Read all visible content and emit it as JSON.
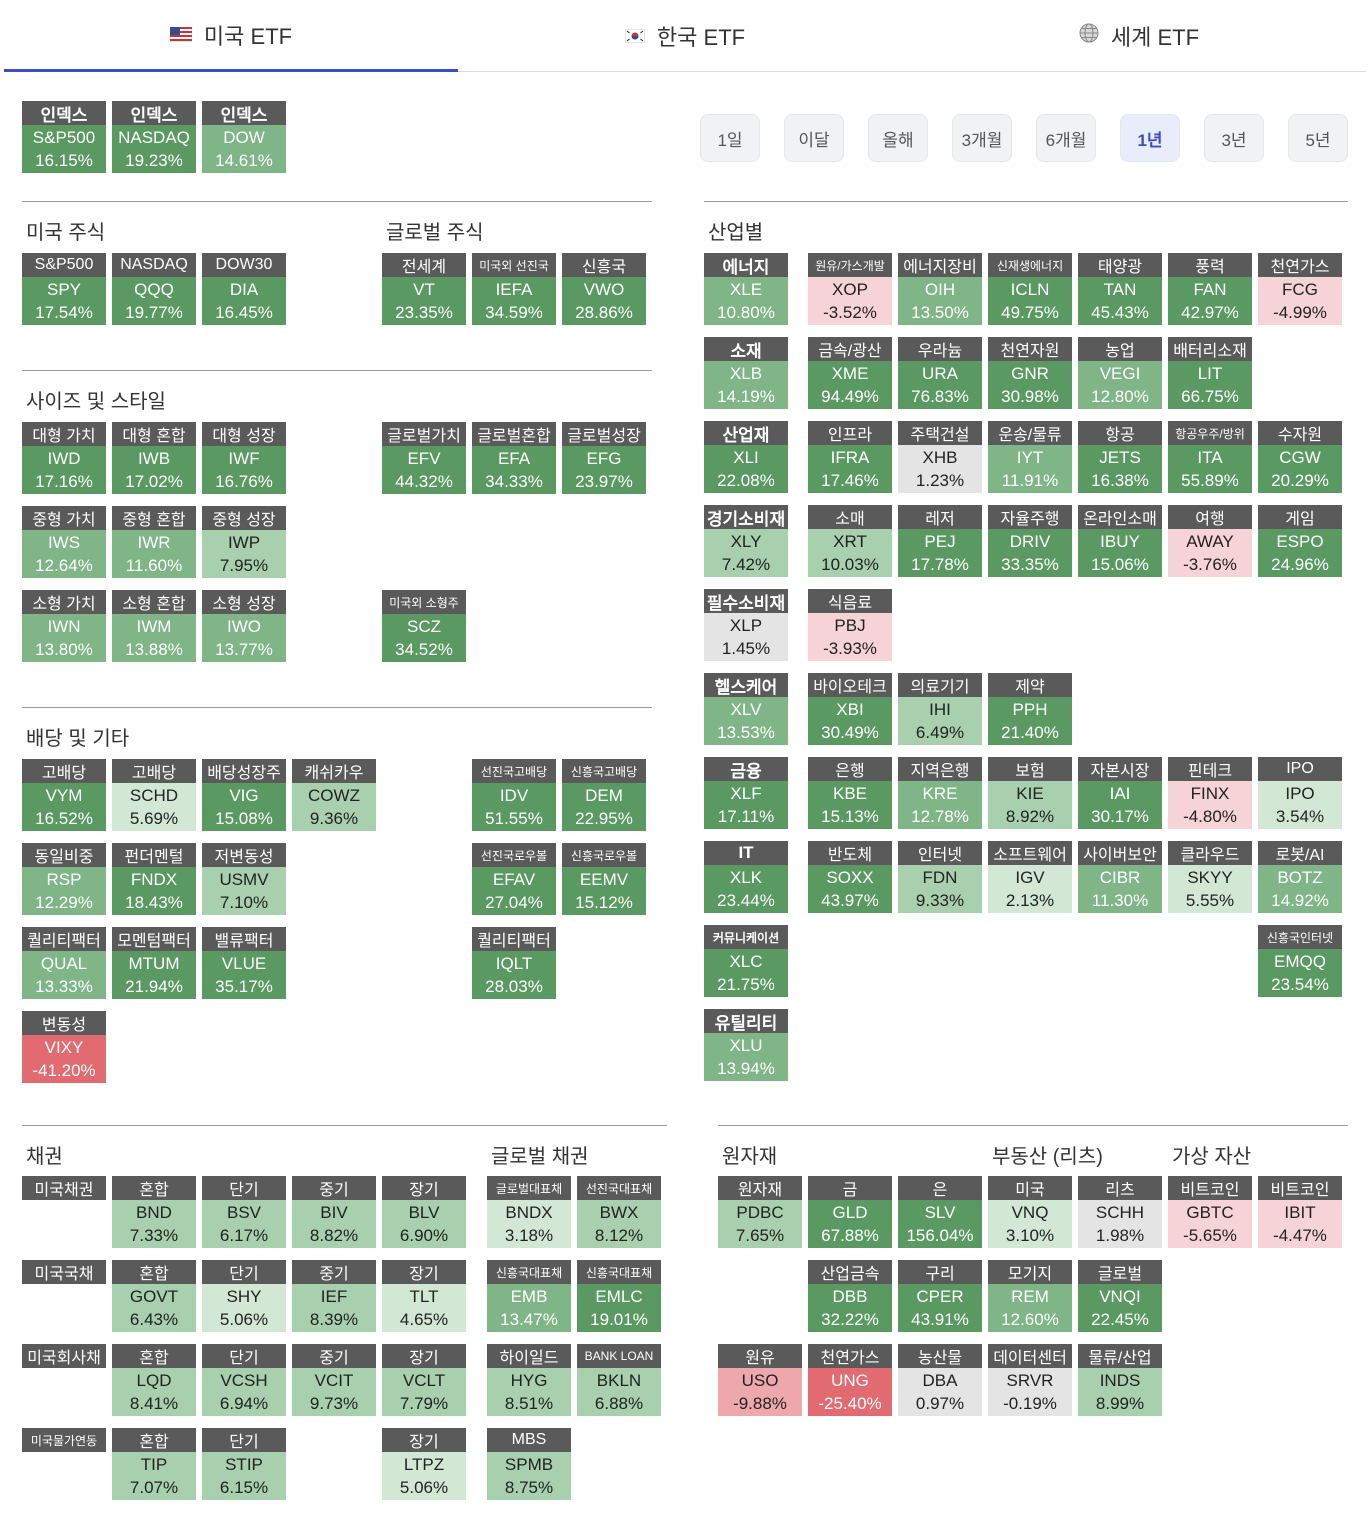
{
  "tabs": [
    {
      "label": "미국 ETF",
      "flag": "us-flag-icon",
      "active": true
    },
    {
      "label": "한국 ETF",
      "flag": "kr-flag-icon",
      "active": false
    },
    {
      "label": "세계 ETF",
      "flag": "globe-icon",
      "active": false
    }
  ],
  "periods": [
    {
      "label": "1일",
      "active": false
    },
    {
      "label": "이달",
      "active": false
    },
    {
      "label": "올해",
      "active": false
    },
    {
      "label": "3개월",
      "active": false
    },
    {
      "label": "6개월",
      "active": false
    },
    {
      "label": "1년",
      "active": true
    },
    {
      "label": "3년",
      "active": false
    },
    {
      "label": "5년",
      "active": false
    }
  ],
  "colors": {
    "strong_green": "#5a9a62",
    "mid_green": "#7fb587",
    "light_green": "#a8cfae",
    "pale_green": "#d3e7d5",
    "neutral": "#e4e4e4",
    "pale_red": "#f6d3d6",
    "red": "#e16b70",
    "header": "#5a5a5a",
    "accent": "#3a4fc4"
  },
  "sections": {
    "us_stock": "미국 주식",
    "global_stock": "글로벌 주식",
    "size_style": "사이즈 및 스타일",
    "dividend": "배당 및 기타",
    "sector": "산업별",
    "bond": "채권",
    "global_bond": "글로벌 채권",
    "commodity": "원자재",
    "reits": "부동산 (리츠)",
    "crypto": "가상 자산"
  },
  "row_labels": {
    "us_treasury_all": "미국채권",
    "us_treasury": "미국국채",
    "us_corp": "미국회사채",
    "us_tips": "미국물가연동"
  },
  "cards": [
    {
      "h": "인덱스",
      "t": "S&P500",
      "v": "16.15%",
      "c": "strong_green",
      "hb": 1
    },
    {
      "h": "인덱스",
      "t": "NASDAQ",
      "v": "19.23%",
      "c": "strong_green",
      "hb": 1
    },
    {
      "h": "인덱스",
      "t": "DOW",
      "v": "14.61%",
      "c": "mid_green",
      "hb": 1
    },
    {
      "h": "S&P500",
      "t": "SPY",
      "v": "17.54%",
      "c": "strong_green"
    },
    {
      "h": "NASDAQ",
      "t": "QQQ",
      "v": "19.77%",
      "c": "strong_green"
    },
    {
      "h": "DOW30",
      "t": "DIA",
      "v": "16.45%",
      "c": "strong_green"
    },
    {
      "h": "전세계",
      "t": "VT",
      "v": "23.35%",
      "c": "strong_green"
    },
    {
      "h": "미국외 선진국",
      "t": "IEFA",
      "v": "34.59%",
      "c": "strong_green",
      "sm": 1
    },
    {
      "h": "신흥국",
      "t": "VWO",
      "v": "28.86%",
      "c": "strong_green"
    },
    {
      "h": "대형 가치",
      "t": "IWD",
      "v": "17.16%",
      "c": "strong_green"
    },
    {
      "h": "대형 혼합",
      "t": "IWB",
      "v": "17.02%",
      "c": "strong_green"
    },
    {
      "h": "대형 성장",
      "t": "IWF",
      "v": "16.76%",
      "c": "strong_green"
    },
    {
      "h": "글로벌가치",
      "t": "EFV",
      "v": "44.32%",
      "c": "strong_green"
    },
    {
      "h": "글로벌혼합",
      "t": "EFA",
      "v": "34.33%",
      "c": "strong_green"
    },
    {
      "h": "글로벌성장",
      "t": "EFG",
      "v": "23.97%",
      "c": "strong_green"
    },
    {
      "h": "중형 가치",
      "t": "IWS",
      "v": "12.64%",
      "c": "mid_green"
    },
    {
      "h": "중형 혼합",
      "t": "IWR",
      "v": "11.60%",
      "c": "mid_green"
    },
    {
      "h": "중형 성장",
      "t": "IWP",
      "v": "7.95%",
      "c": "light_green"
    },
    {
      "h": "소형 가치",
      "t": "IWN",
      "v": "13.80%",
      "c": "mid_green"
    },
    {
      "h": "소형 혼합",
      "t": "IWM",
      "v": "13.88%",
      "c": "mid_green"
    },
    {
      "h": "소형 성장",
      "t": "IWO",
      "v": "13.77%",
      "c": "mid_green"
    },
    {
      "h": "미국외 소형주",
      "t": "SCZ",
      "v": "34.52%",
      "c": "strong_green",
      "sm": 1
    },
    {
      "h": "고배당",
      "t": "VYM",
      "v": "16.52%",
      "c": "strong_green"
    },
    {
      "h": "고배당",
      "t": "SCHD",
      "v": "5.69%",
      "c": "pale_green"
    },
    {
      "h": "배당성장주",
      "t": "VIG",
      "v": "15.08%",
      "c": "strong_green"
    },
    {
      "h": "캐쉬카우",
      "t": "COWZ",
      "v": "9.36%",
      "c": "light_green"
    },
    {
      "h": "선진국고배당",
      "t": "IDV",
      "v": "51.55%",
      "c": "strong_green",
      "sm": 1
    },
    {
      "h": "신흥국고배당",
      "t": "DEM",
      "v": "22.95%",
      "c": "strong_green",
      "sm": 1
    },
    {
      "h": "동일비중",
      "t": "RSP",
      "v": "12.29%",
      "c": "mid_green"
    },
    {
      "h": "펀더멘털",
      "t": "FNDX",
      "v": "18.43%",
      "c": "strong_green"
    },
    {
      "h": "저변동성",
      "t": "USMV",
      "v": "7.10%",
      "c": "light_green"
    },
    {
      "h": "선진국로우볼",
      "t": "EFAV",
      "v": "27.04%",
      "c": "strong_green",
      "sm": 1
    },
    {
      "h": "신흥국로우볼",
      "t": "EEMV",
      "v": "15.12%",
      "c": "strong_green",
      "sm": 1
    },
    {
      "h": "퀄리티팩터",
      "t": "QUAL",
      "v": "13.33%",
      "c": "mid_green"
    },
    {
      "h": "모멘텀팩터",
      "t": "MTUM",
      "v": "21.94%",
      "c": "strong_green"
    },
    {
      "h": "밸류팩터",
      "t": "VLUE",
      "v": "35.17%",
      "c": "strong_green"
    },
    {
      "h": "퀄리티팩터",
      "t": "IQLT",
      "v": "28.03%",
      "c": "strong_green"
    },
    {
      "h": "변동성",
      "t": "VIXY",
      "v": "-41.20%",
      "c": "red"
    },
    {
      "h": "에너지",
      "t": "XLE",
      "v": "10.80%",
      "c": "mid_green",
      "hb": 1
    },
    {
      "h": "원유/가스개발",
      "t": "XOP",
      "v": "-3.52%",
      "c": "pale_red",
      "sm": 1
    },
    {
      "h": "에너지장비",
      "t": "OIH",
      "v": "13.50%",
      "c": "mid_green"
    },
    {
      "h": "신재생에너지",
      "t": "ICLN",
      "v": "49.75%",
      "c": "strong_green",
      "sm": 1
    },
    {
      "h": "태양광",
      "t": "TAN",
      "v": "45.43%",
      "c": "strong_green"
    },
    {
      "h": "풍력",
      "t": "FAN",
      "v": "42.97%",
      "c": "strong_green"
    },
    {
      "h": "천연가스",
      "t": "FCG",
      "v": "-4.99%",
      "c": "pale_red"
    },
    {
      "h": "소재",
      "t": "XLB",
      "v": "14.19%",
      "c": "mid_green",
      "hb": 1
    },
    {
      "h": "금속/광산",
      "t": "XME",
      "v": "94.49%",
      "c": "strong_green"
    },
    {
      "h": "우라늄",
      "t": "URA",
      "v": "76.83%",
      "c": "strong_green"
    },
    {
      "h": "천연자원",
      "t": "GNR",
      "v": "30.98%",
      "c": "strong_green"
    },
    {
      "h": "농업",
      "t": "VEGI",
      "v": "12.80%",
      "c": "mid_green"
    },
    {
      "h": "배터리소재",
      "t": "LIT",
      "v": "66.75%",
      "c": "strong_green"
    },
    {
      "h": "산업재",
      "t": "XLI",
      "v": "22.08%",
      "c": "strong_green",
      "hb": 1
    },
    {
      "h": "인프라",
      "t": "IFRA",
      "v": "17.46%",
      "c": "strong_green"
    },
    {
      "h": "주택건설",
      "t": "XHB",
      "v": "1.23%",
      "c": "neutral"
    },
    {
      "h": "운송/물류",
      "t": "IYT",
      "v": "11.91%",
      "c": "mid_green"
    },
    {
      "h": "항공",
      "t": "JETS",
      "v": "16.38%",
      "c": "strong_green"
    },
    {
      "h": "항공우주/방위",
      "t": "ITA",
      "v": "55.89%",
      "c": "strong_green",
      "sm": 1
    },
    {
      "h": "수자원",
      "t": "CGW",
      "v": "20.29%",
      "c": "strong_green"
    },
    {
      "h": "경기소비재",
      "t": "XLY",
      "v": "7.42%",
      "c": "light_green",
      "hb": 1
    },
    {
      "h": "소매",
      "t": "XRT",
      "v": "10.03%",
      "c": "light_green"
    },
    {
      "h": "레저",
      "t": "PEJ",
      "v": "17.78%",
      "c": "strong_green"
    },
    {
      "h": "자율주행",
      "t": "DRIV",
      "v": "33.35%",
      "c": "strong_green"
    },
    {
      "h": "온라인소매",
      "t": "IBUY",
      "v": "15.06%",
      "c": "strong_green"
    },
    {
      "h": "여행",
      "t": "AWAY",
      "v": "-3.76%",
      "c": "pale_red"
    },
    {
      "h": "게임",
      "t": "ESPO",
      "v": "24.96%",
      "c": "strong_green"
    },
    {
      "h": "필수소비재",
      "t": "XLP",
      "v": "1.45%",
      "c": "neutral",
      "hb": 1
    },
    {
      "h": "식음료",
      "t": "PBJ",
      "v": "-3.93%",
      "c": "pale_red"
    },
    {
      "h": "헬스케어",
      "t": "XLV",
      "v": "13.53%",
      "c": "mid_green",
      "hb": 1
    },
    {
      "h": "바이오테크",
      "t": "XBI",
      "v": "30.49%",
      "c": "strong_green"
    },
    {
      "h": "의료기기",
      "t": "IHI",
      "v": "6.49%",
      "c": "light_green"
    },
    {
      "h": "제약",
      "t": "PPH",
      "v": "21.40%",
      "c": "strong_green"
    },
    {
      "h": "금융",
      "t": "XLF",
      "v": "17.11%",
      "c": "strong_green",
      "hb": 1
    },
    {
      "h": "은행",
      "t": "KBE",
      "v": "15.13%",
      "c": "strong_green"
    },
    {
      "h": "지역은행",
      "t": "KRE",
      "v": "12.78%",
      "c": "mid_green"
    },
    {
      "h": "보험",
      "t": "KIE",
      "v": "8.92%",
      "c": "light_green"
    },
    {
      "h": "자본시장",
      "t": "IAI",
      "v": "30.17%",
      "c": "strong_green"
    },
    {
      "h": "핀테크",
      "t": "FINX",
      "v": "-4.80%",
      "c": "pale_red"
    },
    {
      "h": "IPO",
      "t": "IPO",
      "v": "3.54%",
      "c": "pale_green"
    },
    {
      "h": "IT",
      "t": "XLK",
      "v": "23.44%",
      "c": "strong_green",
      "hb": 1
    },
    {
      "h": "반도체",
      "t": "SOXX",
      "v": "43.97%",
      "c": "strong_green"
    },
    {
      "h": "인터넷",
      "t": "FDN",
      "v": "9.33%",
      "c": "light_green"
    },
    {
      "h": "소프트웨어",
      "t": "IGV",
      "v": "2.13%",
      "c": "pale_green"
    },
    {
      "h": "사이버보안",
      "t": "CIBR",
      "v": "11.30%",
      "c": "mid_green"
    },
    {
      "h": "클라우드",
      "t": "SKYY",
      "v": "5.55%",
      "c": "pale_green"
    },
    {
      "h": "로봇/AI",
      "t": "BOTZ",
      "v": "14.92%",
      "c": "mid_green"
    },
    {
      "h": "커뮤니케이션",
      "t": "XLC",
      "v": "21.75%",
      "c": "strong_green",
      "hb": 1,
      "sm": 1
    },
    {
      "h": "신흥국인터넷",
      "t": "EMQQ",
      "v": "23.54%",
      "c": "strong_green",
      "sm": 1
    },
    {
      "h": "유틸리티",
      "t": "XLU",
      "v": "13.94%",
      "c": "mid_green",
      "hb": 1
    },
    {
      "h": "혼합",
      "t": "BND",
      "v": "7.33%",
      "c": "light_green"
    },
    {
      "h": "단기",
      "t": "BSV",
      "v": "6.17%",
      "c": "light_green"
    },
    {
      "h": "중기",
      "t": "BIV",
      "v": "8.82%",
      "c": "light_green"
    },
    {
      "h": "장기",
      "t": "BLV",
      "v": "6.90%",
      "c": "light_green"
    },
    {
      "h": "글로벌대표채",
      "t": "BNDX",
      "v": "3.18%",
      "c": "pale_green",
      "sm": 1
    },
    {
      "h": "선진국대표채",
      "t": "BWX",
      "v": "8.12%",
      "c": "light_green",
      "sm": 1
    },
    {
      "h": "혼합",
      "t": "GOVT",
      "v": "6.43%",
      "c": "light_green"
    },
    {
      "h": "단기",
      "t": "SHY",
      "v": "5.06%",
      "c": "pale_green"
    },
    {
      "h": "중기",
      "t": "IEF",
      "v": "8.39%",
      "c": "light_green"
    },
    {
      "h": "장기",
      "t": "TLT",
      "v": "4.65%",
      "c": "pale_green"
    },
    {
      "h": "신흥국대표채",
      "t": "EMB",
      "v": "13.47%",
      "c": "mid_green",
      "sm": 1
    },
    {
      "h": "신흥국대표채",
      "t": "EMLC",
      "v": "19.01%",
      "c": "strong_green",
      "sm": 1
    },
    {
      "h": "혼합",
      "t": "LQD",
      "v": "8.41%",
      "c": "light_green"
    },
    {
      "h": "단기",
      "t": "VCSH",
      "v": "6.94%",
      "c": "light_green"
    },
    {
      "h": "중기",
      "t": "VCIT",
      "v": "9.73%",
      "c": "light_green"
    },
    {
      "h": "장기",
      "t": "VCLT",
      "v": "7.79%",
      "c": "light_green"
    },
    {
      "h": "하이일드",
      "t": "HYG",
      "v": "8.51%",
      "c": "light_green"
    },
    {
      "h": "BANK LOAN",
      "t": "BKLN",
      "v": "6.88%",
      "c": "light_green",
      "sm": 1
    },
    {
      "h": "혼합",
      "t": "TIP",
      "v": "7.07%",
      "c": "light_green"
    },
    {
      "h": "단기",
      "t": "STIP",
      "v": "6.15%",
      "c": "light_green"
    },
    {
      "h": "장기",
      "t": "LTPZ",
      "v": "5.06%",
      "c": "pale_green"
    },
    {
      "h": "MBS",
      "t": "SPMB",
      "v": "8.75%",
      "c": "light_green"
    },
    {
      "h": "원자재",
      "t": "PDBC",
      "v": "7.65%",
      "c": "light_green"
    },
    {
      "h": "금",
      "t": "GLD",
      "v": "67.88%",
      "c": "strong_green"
    },
    {
      "h": "은",
      "t": "SLV",
      "v": "156.04%",
      "c": "strong_green"
    },
    {
      "h": "미국",
      "t": "VNQ",
      "v": "3.10%",
      "c": "pale_green"
    },
    {
      "h": "리츠",
      "t": "SCHH",
      "v": "1.98%",
      "c": "neutral"
    },
    {
      "h": "비트코인",
      "t": "GBTC",
      "v": "-5.65%",
      "c": "pale_red"
    },
    {
      "h": "비트코인",
      "t": "IBIT",
      "v": "-4.47%",
      "c": "pale_red"
    },
    {
      "h": "산업금속",
      "t": "DBB",
      "v": "32.22%",
      "c": "strong_green"
    },
    {
      "h": "구리",
      "t": "CPER",
      "v": "43.91%",
      "c": "strong_green"
    },
    {
      "h": "모기지",
      "t": "REM",
      "v": "12.60%",
      "c": "mid_green"
    },
    {
      "h": "글로벌",
      "t": "VNQI",
      "v": "22.45%",
      "c": "strong_green"
    },
    {
      "h": "원유",
      "t": "USO",
      "v": "-9.88%",
      "c": "pale_red_dark"
    },
    {
      "h": "천연가스",
      "t": "UNG",
      "v": "-25.40%",
      "c": "red"
    },
    {
      "h": "농산물",
      "t": "DBA",
      "v": "0.97%",
      "c": "neutral"
    },
    {
      "h": "데이터센터",
      "t": "SRVR",
      "v": "-0.19%",
      "c": "neutral"
    },
    {
      "h": "물류/산업",
      "t": "INDS",
      "v": "8.99%",
      "c": "light_green"
    }
  ]
}
